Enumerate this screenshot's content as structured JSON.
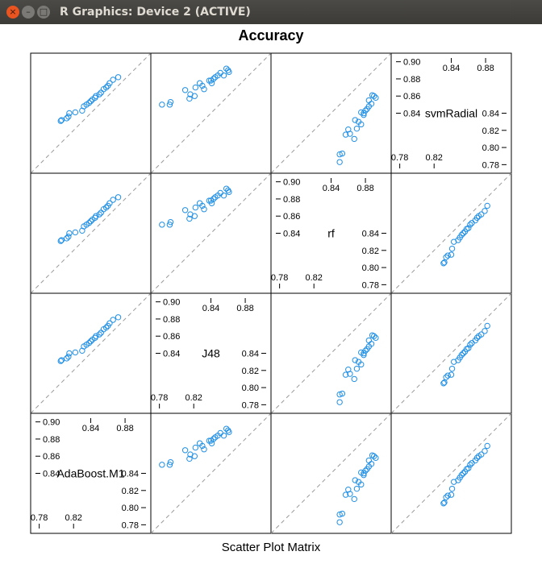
{
  "window": {
    "title": "R Graphics: Device 2 (ACTIVE)",
    "close_glyph": "×",
    "minimize_glyph": "–",
    "maximize_glyph": "□"
  },
  "chart_data": {
    "type": "scatter",
    "title": "Accuracy",
    "xlabel": "Scatter Plot Matrix",
    "variables": [
      "AdaBoost.M1",
      "J48",
      "rf",
      "svmRadial"
    ],
    "axis_range": [
      0.77,
      0.91
    ],
    "upper_tick_labels": [
      "0.84",
      "0.86",
      "0.88",
      "0.90"
    ],
    "lower_tick_labels": [
      "0.78",
      "0.80",
      "0.82",
      "0.84"
    ],
    "top_tick_labels": [
      "0.84",
      "0.88"
    ],
    "bottom_tick_labels": [
      "0.78",
      "0.82"
    ],
    "reference_line": "y = x",
    "point_color": "#1f8fe6",
    "values": {
      "AdaBoost.M1": [
        0.805,
        0.806,
        0.812,
        0.814,
        0.815,
        0.822,
        0.83,
        0.832,
        0.835,
        0.838,
        0.84,
        0.842,
        0.845,
        0.846,
        0.85,
        0.852,
        0.855,
        0.858,
        0.86,
        0.862,
        0.866,
        0.872
      ],
      "J48": [
        0.783,
        0.792,
        0.793,
        0.815,
        0.816,
        0.821,
        0.822,
        0.83,
        0.832,
        0.84,
        0.841,
        0.843,
        0.845,
        0.848,
        0.851,
        0.855,
        0.858,
        0.86,
        0.861,
        0.838,
        0.827,
        0.81
      ],
      "rf": [
        0.85,
        0.85,
        0.853,
        0.857,
        0.862,
        0.86,
        0.87,
        0.872,
        0.868,
        0.878,
        0.875,
        0.88,
        0.882,
        0.884,
        0.887,
        0.884,
        0.892,
        0.89,
        0.888,
        0.878,
        0.875,
        0.867
      ],
      "svmRadial": [
        0.831,
        0.832,
        0.834,
        0.836,
        0.84,
        0.841,
        0.843,
        0.848,
        0.85,
        0.852,
        0.854,
        0.856,
        0.858,
        0.86,
        0.862,
        0.864,
        0.868,
        0.87,
        0.872,
        0.875,
        0.879,
        0.882
      ]
    }
  }
}
